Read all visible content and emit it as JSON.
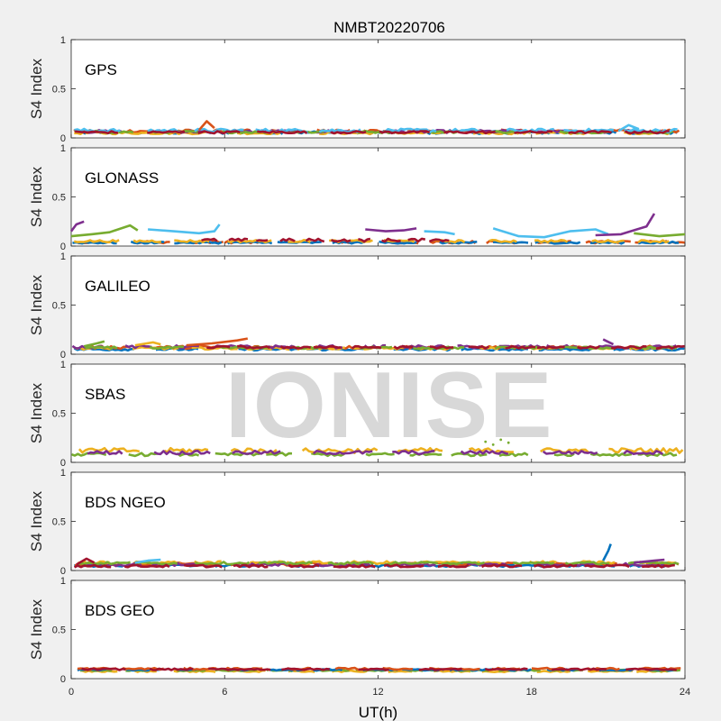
{
  "figure_title": "NMBT20220706",
  "watermark_text": "IONISE",
  "chart_data": {
    "type": "scatter",
    "title": "NMBT20220706",
    "xlabel": "UT(h)",
    "ylabel": "S4 Index",
    "xlim": [
      0,
      24
    ],
    "ylim": [
      0,
      1
    ],
    "xticks": [
      "0",
      "6",
      "12",
      "18",
      "24"
    ],
    "yticks": [
      "0",
      "0.5",
      "1"
    ],
    "grid": false,
    "series_colors": [
      "#0072BD",
      "#D95319",
      "#EDB120",
      "#7E2F8E",
      "#77AC30",
      "#4DBEEE",
      "#A2142F"
    ],
    "panels": [
      {
        "label": "GPS",
        "features": [
          {
            "type": "band",
            "color": "#0072BD",
            "x0": 0,
            "x1": 24,
            "base": 0.055,
            "amp": 0.015
          },
          {
            "type": "band",
            "color": "#D95319",
            "x0": 0,
            "x1": 24,
            "base": 0.07,
            "amp": 0.015
          },
          {
            "type": "band",
            "color": "#EDB120",
            "x0": 0,
            "x1": 24,
            "base": 0.05,
            "amp": 0.012
          },
          {
            "type": "band",
            "color": "#7E2F8E",
            "x0": 0,
            "x1": 24,
            "base": 0.065,
            "amp": 0.015
          },
          {
            "type": "band",
            "color": "#77AC30",
            "x0": 0,
            "x1": 24,
            "base": 0.06,
            "amp": 0.012
          },
          {
            "type": "band",
            "color": "#4DBEEE",
            "x0": 0,
            "x1": 24,
            "base": 0.075,
            "amp": 0.018
          },
          {
            "type": "band",
            "color": "#A2142F",
            "x0": 0,
            "x1": 24,
            "base": 0.058,
            "amp": 0.012
          },
          {
            "type": "line",
            "color": "#4DBEEE",
            "pts": [
              [
                21.4,
                0.07
              ],
              [
                21.8,
                0.13
              ],
              [
                22.2,
                0.09
              ]
            ]
          },
          {
            "type": "line",
            "color": "#D95319",
            "pts": [
              [
                5.0,
                0.08
              ],
              [
                5.3,
                0.17
              ],
              [
                5.6,
                0.1
              ]
            ]
          }
        ]
      },
      {
        "label": "GLONASS",
        "features": [
          {
            "type": "band",
            "color": "#D95319",
            "x0": 0,
            "x1": 24,
            "base": 0.04,
            "amp": 0.012
          },
          {
            "type": "band",
            "color": "#0072BD",
            "x0": 0,
            "x1": 24,
            "base": 0.035,
            "amp": 0.01
          },
          {
            "type": "band",
            "color": "#EDB120",
            "x0": 0,
            "x1": 24,
            "base": 0.05,
            "amp": 0.012
          },
          {
            "type": "band",
            "color": "#A2142F",
            "x0": 5,
            "x1": 15,
            "base": 0.06,
            "amp": 0.015
          },
          {
            "type": "line",
            "color": "#77AC30",
            "pts": [
              [
                0,
                0.1
              ],
              [
                0.8,
                0.12
              ],
              [
                1.5,
                0.14
              ],
              [
                2.3,
                0.21
              ],
              [
                2.6,
                0.16
              ]
            ]
          },
          {
            "type": "line",
            "color": "#7E2F8E",
            "pts": [
              [
                0,
                0.15
              ],
              [
                0.2,
                0.22
              ],
              [
                0.5,
                0.25
              ]
            ]
          },
          {
            "type": "line",
            "color": "#4DBEEE",
            "pts": [
              [
                3.0,
                0.17
              ],
              [
                4.0,
                0.15
              ],
              [
                5.0,
                0.13
              ],
              [
                5.6,
                0.15
              ],
              [
                5.8,
                0.22
              ]
            ]
          },
          {
            "type": "line",
            "color": "#7E2F8E",
            "pts": [
              [
                11.5,
                0.17
              ],
              [
                12.3,
                0.15
              ],
              [
                13.0,
                0.16
              ],
              [
                13.5,
                0.18
              ]
            ]
          },
          {
            "type": "line",
            "color": "#4DBEEE",
            "pts": [
              [
                13.8,
                0.15
              ],
              [
                14.6,
                0.14
              ],
              [
                15.0,
                0.12
              ]
            ]
          },
          {
            "type": "line",
            "color": "#4DBEEE",
            "pts": [
              [
                16.5,
                0.18
              ],
              [
                17.5,
                0.1
              ],
              [
                18.5,
                0.09
              ],
              [
                19.5,
                0.15
              ],
              [
                20.5,
                0.17
              ],
              [
                21.0,
                0.12
              ]
            ]
          },
          {
            "type": "line",
            "color": "#7E2F8E",
            "pts": [
              [
                20.5,
                0.11
              ],
              [
                21.5,
                0.12
              ],
              [
                22.5,
                0.2
              ],
              [
                22.8,
                0.33
              ]
            ]
          },
          {
            "type": "line",
            "color": "#77AC30",
            "pts": [
              [
                22.0,
                0.13
              ],
              [
                23.0,
                0.1
              ],
              [
                24.0,
                0.12
              ]
            ]
          }
        ]
      },
      {
        "label": "GALILEO",
        "features": [
          {
            "type": "band",
            "color": "#0072BD",
            "x0": 0,
            "x1": 24,
            "base": 0.05,
            "amp": 0.012
          },
          {
            "type": "band",
            "color": "#D95319",
            "x0": 0,
            "x1": 24,
            "base": 0.07,
            "amp": 0.015
          },
          {
            "type": "band",
            "color": "#EDB120",
            "x0": 0,
            "x1": 24,
            "base": 0.06,
            "amp": 0.012
          },
          {
            "type": "band",
            "color": "#7E2F8E",
            "x0": 0,
            "x1": 24,
            "base": 0.075,
            "amp": 0.015
          },
          {
            "type": "band",
            "color": "#77AC30",
            "x0": 0,
            "x1": 24,
            "base": 0.065,
            "amp": 0.012
          },
          {
            "type": "band",
            "color": "#A2142F",
            "x0": 5,
            "x1": 24,
            "base": 0.07,
            "amp": 0.012
          },
          {
            "type": "line",
            "color": "#D95319",
            "pts": [
              [
                4.5,
                0.09
              ],
              [
                5.5,
                0.11
              ],
              [
                6.5,
                0.14
              ],
              [
                6.9,
                0.16
              ]
            ]
          },
          {
            "type": "line",
            "color": "#77AC30",
            "pts": [
              [
                0.5,
                0.08
              ],
              [
                1.0,
                0.11
              ],
              [
                1.3,
                0.13
              ]
            ]
          },
          {
            "type": "line",
            "color": "#EDB120",
            "pts": [
              [
                2.5,
                0.09
              ],
              [
                3.2,
                0.12
              ],
              [
                3.5,
                0.1
              ]
            ]
          },
          {
            "type": "line",
            "color": "#7E2F8E",
            "pts": [
              [
                20.8,
                0.15
              ],
              [
                21.2,
                0.1
              ]
            ]
          }
        ]
      },
      {
        "label": "SBAS",
        "features": [
          {
            "type": "band",
            "color": "#77AC30",
            "x0": 0,
            "x1": 24,
            "base": 0.08,
            "amp": 0.015
          },
          {
            "type": "band",
            "color": "#EDB120",
            "x0": 0,
            "x1": 24,
            "base": 0.12,
            "amp": 0.025
          },
          {
            "type": "band",
            "color": "#7E2F8E",
            "x0": 0,
            "x1": 24,
            "base": 0.1,
            "amp": 0.018
          },
          {
            "type": "dots",
            "color": "#77AC30",
            "pts": [
              [
                16.2,
                0.21
              ],
              [
                16.5,
                0.18
              ],
              [
                16.8,
                0.23
              ],
              [
                17.1,
                0.2
              ]
            ]
          }
        ]
      },
      {
        "label": "BDS NGEO",
        "features": [
          {
            "type": "band",
            "color": "#0072BD",
            "x0": 0,
            "x1": 24,
            "base": 0.05,
            "amp": 0.012
          },
          {
            "type": "band",
            "color": "#D95319",
            "x0": 0,
            "x1": 24,
            "base": 0.065,
            "amp": 0.015
          },
          {
            "type": "band",
            "color": "#EDB120",
            "x0": 0,
            "x1": 24,
            "base": 0.08,
            "amp": 0.015
          },
          {
            "type": "band",
            "color": "#7E2F8E",
            "x0": 0,
            "x1": 24,
            "base": 0.06,
            "amp": 0.015
          },
          {
            "type": "band",
            "color": "#77AC30",
            "x0": 0,
            "x1": 24,
            "base": 0.075,
            "amp": 0.012
          },
          {
            "type": "band",
            "color": "#A2142F",
            "x0": 0,
            "x1": 24,
            "base": 0.045,
            "amp": 0.012
          },
          {
            "type": "line",
            "color": "#A2142F",
            "pts": [
              [
                0.2,
                0.06
              ],
              [
                0.6,
                0.12
              ],
              [
                0.9,
                0.08
              ]
            ]
          },
          {
            "type": "line",
            "color": "#4DBEEE",
            "pts": [
              [
                2.5,
                0.08
              ],
              [
                3.0,
                0.1
              ],
              [
                3.5,
                0.11
              ]
            ]
          },
          {
            "type": "line",
            "color": "#0072BD",
            "pts": [
              [
                20.8,
                0.1
              ],
              [
                21.0,
                0.2
              ],
              [
                21.1,
                0.27
              ]
            ]
          },
          {
            "type": "line",
            "color": "#7E2F8E",
            "pts": [
              [
                22.0,
                0.08
              ],
              [
                22.8,
                0.1
              ],
              [
                23.2,
                0.11
              ]
            ]
          }
        ]
      },
      {
        "label": "BDS GEO",
        "features": [
          {
            "type": "band",
            "color": "#EDB120",
            "x0": 0,
            "x1": 24,
            "base": 0.075,
            "amp": 0.008
          },
          {
            "type": "band",
            "color": "#77AC30",
            "x0": 0,
            "x1": 24,
            "base": 0.085,
            "amp": 0.008
          },
          {
            "type": "band",
            "color": "#0072BD",
            "x0": 0,
            "x1": 24,
            "base": 0.09,
            "amp": 0.008
          },
          {
            "type": "band",
            "color": "#D95319",
            "x0": 0,
            "x1": 24,
            "base": 0.1,
            "amp": 0.01
          },
          {
            "type": "band",
            "color": "#A2142F",
            "x0": 0,
            "x1": 24,
            "base": 0.095,
            "amp": 0.008
          }
        ]
      }
    ]
  }
}
